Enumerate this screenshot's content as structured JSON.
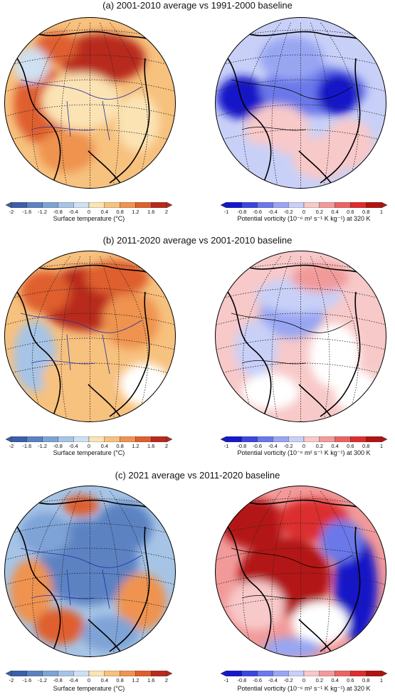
{
  "rows": [
    {
      "title": "(a) 2001-2010 average vs 1991-2000 baseline",
      "left_label": "Surface temperature (°C)",
      "right_label": "Potential vorticity (10⁻⁶ m² s⁻¹ K kg⁻¹) at 320 K",
      "left_style": "warm",
      "right_style": "blue"
    },
    {
      "title": "(b) 2011-2020 average vs 2001-2010 baseline",
      "left_label": "Surface temperature (°C)",
      "right_label": "Potential vorticity (10⁻⁶ m² s⁻¹ K kg⁻¹) at 300 K",
      "left_style": "warm2",
      "right_style": "pale"
    },
    {
      "title": "(c) 2021 average vs 2011-2020 baseline",
      "left_label": "Surface temperature (°C)",
      "right_label": "Potential vorticity (10⁻⁶ m² s⁻¹ K kg⁻¹) at 320 K",
      "left_style": "cold",
      "right_style": "red"
    }
  ],
  "temp_ticks": [
    "-2",
    "-1.6",
    "-1.2",
    "-0.8",
    "-0.4",
    "0",
    "0.4",
    "0.8",
    "1.2",
    "1.6",
    "2"
  ],
  "pv_ticks": [
    "-1",
    "-0.8",
    "-0.6",
    "-0.4",
    "-0.2",
    "0",
    "0.2",
    "0.4",
    "0.6",
    "0.8",
    "1"
  ],
  "colors": {
    "temp_scale": [
      "#3b5fa8",
      "#5b82c2",
      "#7ea3d6",
      "#a6c4e6",
      "#cfe0f2",
      "#ffffff",
      "#fbe3b4",
      "#f7c17e",
      "#ef9350",
      "#df5f2f",
      "#b82a1d"
    ],
    "pv_scale": [
      "#1518c9",
      "#3c46de",
      "#6a78ea",
      "#98a6f2",
      "#c8d0f8",
      "#ffffff",
      "#f8c9c9",
      "#f29a9a",
      "#ea6464",
      "#dc2e2e",
      "#b31313"
    ]
  }
}
